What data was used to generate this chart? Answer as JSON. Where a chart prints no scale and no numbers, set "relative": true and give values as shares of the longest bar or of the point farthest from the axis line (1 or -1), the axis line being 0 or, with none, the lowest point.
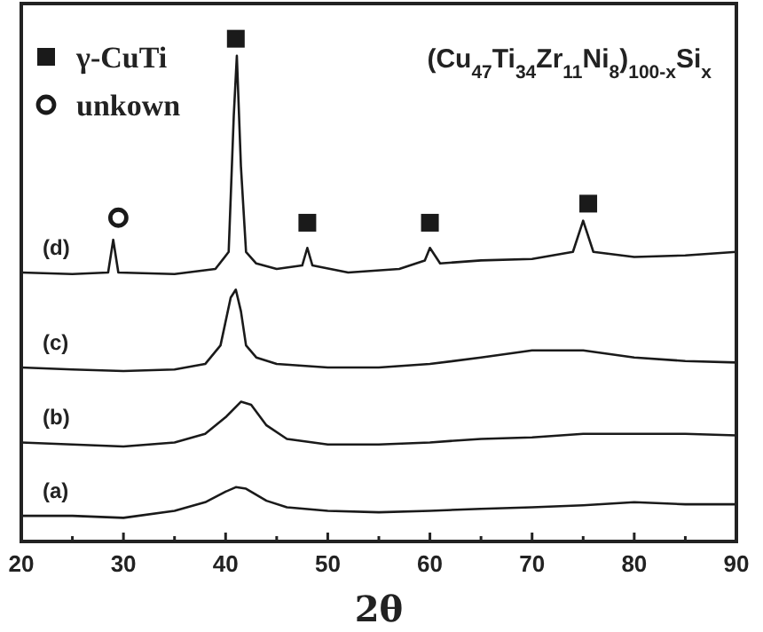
{
  "chart_data": {
    "type": "line",
    "relative": true,
    "xlabel": "2θ",
    "xlim": [
      20,
      90
    ],
    "xticks": [
      20,
      {
        "value": 25,
        "label": null
      },
      30,
      {
        "value": 35,
        "label": null
      },
      40,
      {
        "value": 45,
        "label": null
      },
      50,
      {
        "value": 55,
        "label": null
      },
      60,
      {
        "value": 65,
        "label": null
      },
      70,
      {
        "value": 75,
        "label": null
      },
      80,
      {
        "value": 85,
        "label": null
      },
      90
    ],
    "legend": "top left",
    "grid": false,
    "line_style": "solid",
    "annotations": [
      {
        "text": "(Cu$_{47}$Ti$_{34}$Zr$_{11}$Ni$_{8}$)$_{100-x}$Si$_{x}$"
      }
    ],
    "series": [
      {
        "name": "(a)",
        "color": "#1a1a1a",
        "x": [
          20,
          25,
          30,
          35,
          38,
          40,
          41,
          42,
          44,
          46,
          50,
          55,
          60,
          65,
          70,
          75,
          80,
          85,
          90
        ],
        "values": [
          0.051,
          0.051,
          0.047,
          0.061,
          0.078,
          0.099,
          0.108,
          0.105,
          0.081,
          0.068,
          0.061,
          0.058,
          0.061,
          0.065,
          0.068,
          0.072,
          0.078,
          0.074,
          0.074
        ]
      },
      {
        "name": "(b)",
        "color": "#1a1a1a",
        "x": [
          20,
          25,
          30,
          35,
          38,
          40,
          41.5,
          42.5,
          44,
          46,
          50,
          55,
          60,
          65,
          70,
          75,
          80,
          85,
          90
        ],
        "values": [
          0.197,
          0.193,
          0.189,
          0.197,
          0.214,
          0.247,
          0.278,
          0.272,
          0.231,
          0.204,
          0.193,
          0.193,
          0.197,
          0.204,
          0.207,
          0.214,
          0.214,
          0.214,
          0.211
        ]
      },
      {
        "name": "(c)",
        "color": "#1a1a1a",
        "x": [
          20,
          25,
          30,
          35,
          38,
          39.5,
          40.5,
          41,
          41.5,
          42,
          43,
          45,
          50,
          55,
          60,
          65,
          70,
          75,
          80,
          85,
          90
        ],
        "values": [
          0.346,
          0.342,
          0.339,
          0.342,
          0.353,
          0.39,
          0.485,
          0.501,
          0.458,
          0.39,
          0.366,
          0.353,
          0.346,
          0.346,
          0.353,
          0.366,
          0.38,
          0.38,
          0.366,
          0.359,
          0.356
        ]
      },
      {
        "name": "(d)",
        "color": "#1a1a1a",
        "x": [
          20,
          25,
          28.5,
          29,
          29.5,
          35,
          39,
          40.3,
          40.8,
          41.1,
          41.5,
          42,
          43,
          45,
          47.5,
          48,
          48.5,
          52,
          57,
          59.5,
          60,
          61,
          65,
          70,
          74,
          75,
          76,
          80,
          85,
          90
        ],
        "values": [
          0.535,
          0.532,
          0.535,
          0.6,
          0.535,
          0.532,
          0.542,
          0.576,
          0.847,
          0.966,
          0.746,
          0.576,
          0.553,
          0.542,
          0.549,
          0.584,
          0.549,
          0.535,
          0.542,
          0.559,
          0.584,
          0.553,
          0.559,
          0.562,
          0.576,
          0.638,
          0.576,
          0.566,
          0.569,
          0.576
        ]
      },
      {
        "name": "γ-CuTi",
        "type": "scatter",
        "marker": "square",
        "color": "#1a1a1a",
        "x": [
          41,
          48,
          60,
          75.5
        ],
        "values": [
          1,
          0.634,
          0.634,
          0.672
        ]
      },
      {
        "name": "unkown",
        "type": "scatter",
        "marker": "circle",
        "color": "#1a1a1a",
        "x": [
          29.5
        ],
        "values": [
          0.644
        ]
      }
    ]
  }
}
